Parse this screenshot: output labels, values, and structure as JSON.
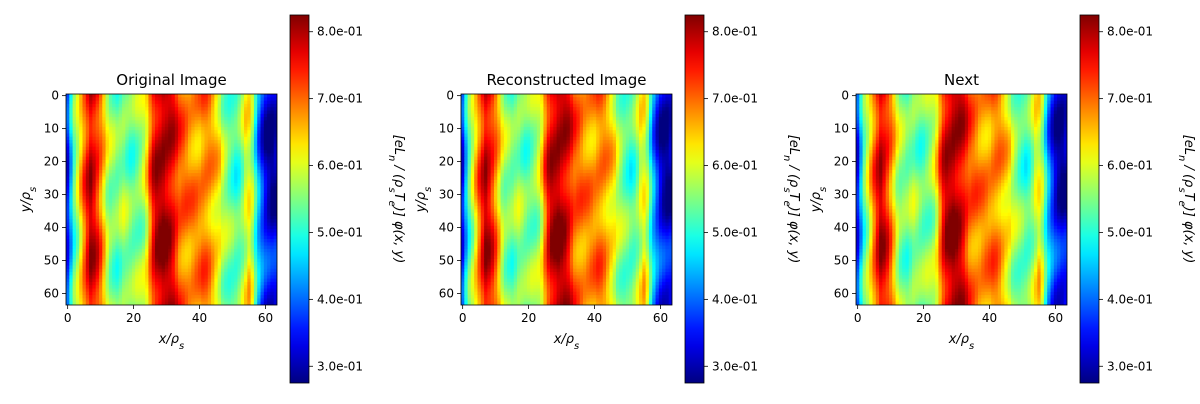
{
  "chart_data": [
    {
      "type": "heatmap",
      "title": "Original Image",
      "xlabel": "x/ρ_s",
      "ylabel": "y/ρ_s",
      "colorbar_label": "[eL_n / (ρ_s T_e)] φ(x, y)",
      "xticks": [
        "0",
        "20",
        "40",
        "60"
      ],
      "yticks": [
        "0",
        "10",
        "20",
        "30",
        "40",
        "50",
        "60"
      ],
      "cbar_ticks": [
        "8.0e-01",
        "7.0e-01",
        "6.0e-01",
        "5.0e-01",
        "4.0e-01",
        "3.0e-01"
      ],
      "xlim": [
        0,
        63
      ],
      "ylim": [
        63,
        0
      ],
      "clim": [
        0.275,
        0.825
      ],
      "colormap": "jet",
      "column_values": [
        0.36,
        0.45,
        0.53,
        0.58,
        0.64,
        0.7,
        0.75,
        0.79,
        0.77,
        0.74,
        0.7,
        0.65,
        0.59,
        0.56,
        0.55,
        0.54,
        0.55,
        0.56,
        0.55,
        0.54,
        0.54,
        0.55,
        0.56,
        0.58,
        0.62,
        0.7,
        0.76,
        0.79,
        0.8,
        0.81,
        0.8,
        0.79,
        0.77,
        0.74,
        0.71,
        0.7,
        0.69,
        0.68,
        0.68,
        0.68,
        0.68,
        0.69,
        0.69,
        0.68,
        0.66,
        0.64,
        0.62,
        0.58,
        0.56,
        0.54,
        0.53,
        0.52,
        0.53,
        0.56,
        0.6,
        0.62,
        0.58,
        0.5,
        0.43,
        0.38,
        0.34,
        0.32,
        0.31,
        0.32
      ]
    },
    {
      "type": "heatmap",
      "title": "Reconstructed Image",
      "xlabel": "x/ρ_s",
      "ylabel": "y/ρ_s",
      "colorbar_label": "[eL_n / (ρ_s T_e)] φ(x, y)",
      "xticks": [
        "0",
        "20",
        "40",
        "60"
      ],
      "yticks": [
        "0",
        "10",
        "20",
        "30",
        "40",
        "50",
        "60"
      ],
      "cbar_ticks": [
        "8.0e-01",
        "7.0e-01",
        "6.0e-01",
        "5.0e-01",
        "4.0e-01",
        "3.0e-01"
      ],
      "xlim": [
        0,
        63
      ],
      "ylim": [
        63,
        0
      ],
      "clim": [
        0.275,
        0.825
      ],
      "colormap": "jet",
      "column_values": [
        0.36,
        0.45,
        0.53,
        0.58,
        0.64,
        0.7,
        0.75,
        0.79,
        0.77,
        0.74,
        0.7,
        0.65,
        0.59,
        0.56,
        0.55,
        0.54,
        0.55,
        0.56,
        0.55,
        0.54,
        0.54,
        0.55,
        0.56,
        0.58,
        0.62,
        0.7,
        0.76,
        0.79,
        0.8,
        0.81,
        0.8,
        0.79,
        0.77,
        0.74,
        0.71,
        0.7,
        0.69,
        0.68,
        0.68,
        0.68,
        0.68,
        0.69,
        0.69,
        0.68,
        0.66,
        0.64,
        0.62,
        0.58,
        0.56,
        0.54,
        0.53,
        0.52,
        0.53,
        0.56,
        0.6,
        0.62,
        0.58,
        0.5,
        0.43,
        0.38,
        0.34,
        0.32,
        0.31,
        0.32
      ]
    },
    {
      "type": "heatmap",
      "title": "Next",
      "xlabel": "x/ρ_s",
      "ylabel": "y/ρ_s",
      "colorbar_label": "[eL_n / (ρ_s T_e)] φ(x, y)",
      "xticks": [
        "0",
        "20",
        "40",
        "60"
      ],
      "yticks": [
        "0",
        "10",
        "20",
        "30",
        "40",
        "50",
        "60"
      ],
      "cbar_ticks": [
        "8.0e-01",
        "7.0e-01",
        "6.0e-01",
        "5.0e-01",
        "4.0e-01",
        "3.0e-01"
      ],
      "xlim": [
        0,
        63
      ],
      "ylim": [
        63,
        0
      ],
      "clim": [
        0.275,
        0.825
      ],
      "colormap": "jet",
      "column_values": [
        0.36,
        0.45,
        0.53,
        0.58,
        0.64,
        0.7,
        0.75,
        0.79,
        0.77,
        0.74,
        0.7,
        0.65,
        0.59,
        0.56,
        0.55,
        0.54,
        0.55,
        0.56,
        0.55,
        0.54,
        0.54,
        0.55,
        0.56,
        0.58,
        0.62,
        0.7,
        0.76,
        0.79,
        0.8,
        0.81,
        0.8,
        0.79,
        0.77,
        0.74,
        0.71,
        0.7,
        0.69,
        0.68,
        0.68,
        0.68,
        0.68,
        0.69,
        0.69,
        0.68,
        0.66,
        0.64,
        0.62,
        0.58,
        0.56,
        0.54,
        0.53,
        0.52,
        0.53,
        0.56,
        0.6,
        0.62,
        0.58,
        0.5,
        0.43,
        0.38,
        0.34,
        0.32,
        0.31,
        0.32
      ]
    }
  ]
}
